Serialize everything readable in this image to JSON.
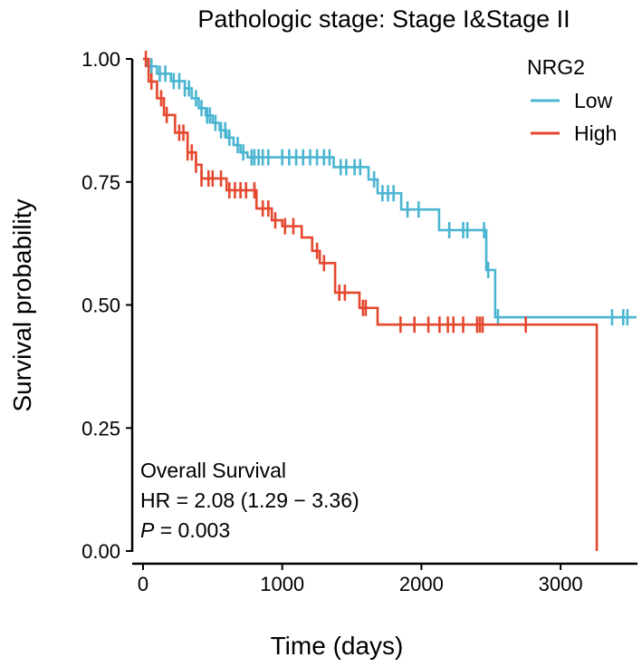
{
  "chart_data": {
    "type": "line",
    "subtype": "kaplan-meier",
    "title": "Pathologic stage: Stage I&Stage II",
    "xlabel": "Time (days)",
    "ylabel": "Survival probability",
    "xlim": [
      -50,
      3560
    ],
    "ylim": [
      0,
      1
    ],
    "xticks": [
      0,
      1000,
      2000,
      3000
    ],
    "xtick_labels": [
      "0",
      "1000",
      "2000",
      "3000"
    ],
    "yticks": [
      0,
      0.25,
      0.5,
      0.75,
      1.0
    ],
    "ytick_labels": [
      "0.00",
      "0.25",
      "0.50",
      "0.75",
      "1.00"
    ],
    "grid": false,
    "legend": {
      "title": "NRG2",
      "placement": "top-right"
    },
    "series": [
      {
        "name": "Low",
        "color": "#4BB5D1",
        "steps": [
          [
            0,
            1.0
          ],
          [
            30,
            0.985
          ],
          [
            100,
            0.97
          ],
          [
            200,
            0.955
          ],
          [
            300,
            0.94
          ],
          [
            350,
            0.92
          ],
          [
            400,
            0.9
          ],
          [
            450,
            0.885
          ],
          [
            500,
            0.87
          ],
          [
            550,
            0.855
          ],
          [
            600,
            0.84
          ],
          [
            650,
            0.825
          ],
          [
            700,
            0.81
          ],
          [
            750,
            0.8
          ],
          [
            1370,
            0.78
          ],
          [
            1620,
            0.755
          ],
          [
            1685,
            0.727
          ],
          [
            1855,
            0.694
          ],
          [
            2127,
            0.652
          ],
          [
            2466,
            0.571
          ],
          [
            2530,
            0.475
          ]
        ],
        "end": 3546,
        "censored": [
          60,
          120,
          160,
          220,
          260,
          300,
          330,
          380,
          420,
          460,
          480,
          520,
          560,
          590,
          620,
          680,
          720,
          780,
          800,
          830,
          860,
          900,
          1000,
          1050,
          1100,
          1150,
          1200,
          1250,
          1300,
          1340,
          1420,
          1460,
          1520,
          1560,
          1660,
          1720,
          1760,
          1800,
          1900,
          1980,
          2200,
          2300,
          2330,
          2450,
          2480,
          2550,
          3370,
          3450,
          3480
        ]
      },
      {
        "name": "High",
        "color": "#E5482E",
        "steps": [
          [
            0,
            1.0
          ],
          [
            40,
            0.954
          ],
          [
            100,
            0.92
          ],
          [
            150,
            0.886
          ],
          [
            230,
            0.85
          ],
          [
            320,
            0.81
          ],
          [
            380,
            0.785
          ],
          [
            420,
            0.757
          ],
          [
            600,
            0.733
          ],
          [
            815,
            0.696
          ],
          [
            925,
            0.672
          ],
          [
            1000,
            0.66
          ],
          [
            1140,
            0.637
          ],
          [
            1215,
            0.61
          ],
          [
            1270,
            0.585
          ],
          [
            1380,
            0.525
          ],
          [
            1555,
            0.494
          ],
          [
            1685,
            0.46
          ],
          [
            3260,
            0.0
          ]
        ],
        "end": 3260,
        "censored": [
          20,
          60,
          130,
          170,
          260,
          290,
          320,
          350,
          380,
          420,
          470,
          500,
          560,
          620,
          660,
          700,
          740,
          800,
          860,
          900,
          950,
          1020,
          1080,
          1250,
          1300,
          1410,
          1450,
          1580,
          1600,
          1850,
          1950,
          2050,
          2130,
          2190,
          2230,
          2300,
          2400,
          2420,
          2440,
          2750
        ]
      }
    ],
    "annotations": {
      "line1": "Overall Survival",
      "line2": "HR = 2.08 (1.29 − 3.36)",
      "p_label": "P",
      "p_value": " = 0.003"
    }
  }
}
